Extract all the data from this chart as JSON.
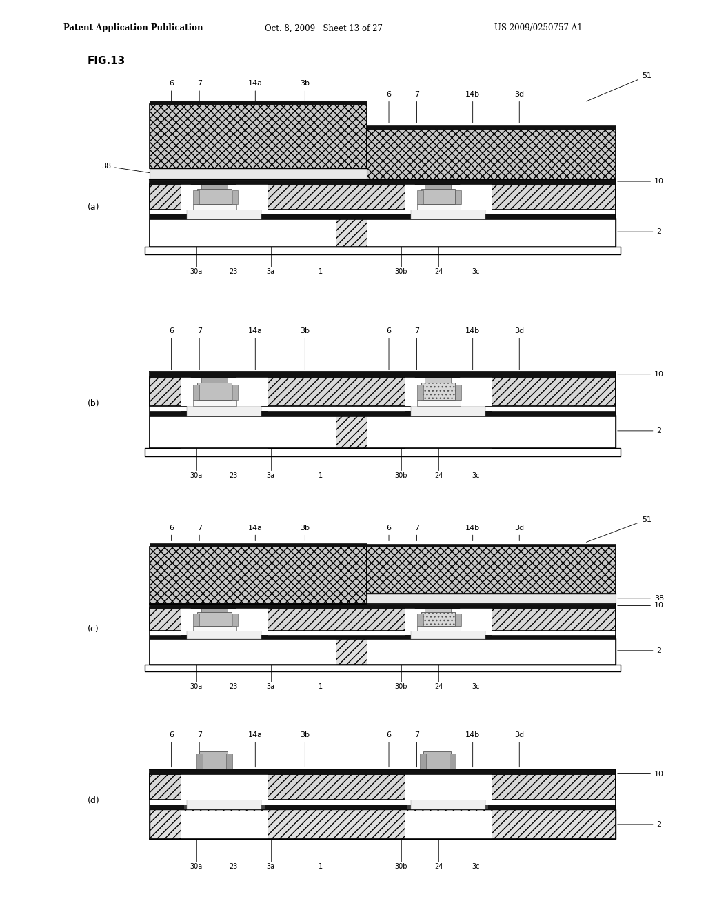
{
  "header_left": "Patent Application Publication",
  "header_mid": "Oct. 8, 2009   Sheet 13 of 27",
  "header_right": "US 2009/0250757 A1",
  "fig_label": "FIG.13",
  "panel_labels": [
    "(a)",
    "(b)",
    "(c)",
    "(d)"
  ],
  "background": "#ffffff"
}
